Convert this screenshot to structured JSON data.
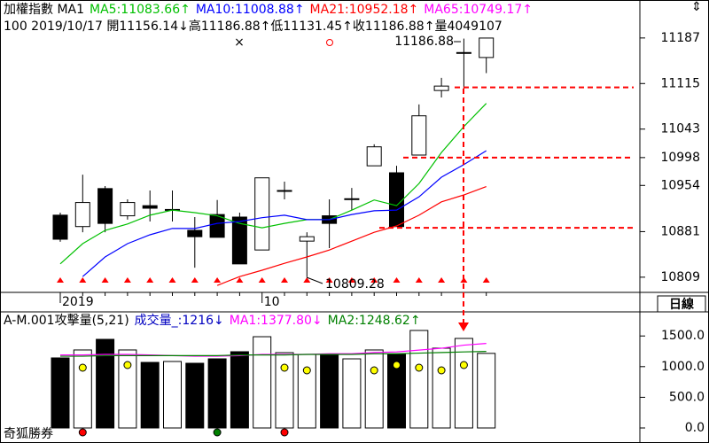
{
  "chart_data": [
    {
      "type": "candlestick",
      "title": "加權指數 MA1",
      "info": "100 2019/10/17 開11156.14↓高11186.88↑低11131.45↑收11186.88↑量4049107",
      "extra_legend": [
        {
          "text": "MA65:10749.17↑",
          "color": "#ff00ff"
        }
      ],
      "categories": [
        "2019",
        null,
        null,
        null,
        null,
        null,
        null,
        null,
        null,
        "10",
        null,
        null,
        null,
        null,
        null,
        null,
        null,
        null,
        null,
        null
      ],
      "open": [
        10907,
        10889,
        10949,
        10906,
        10922,
        10915,
        10883,
        10908,
        10904,
        10852,
        10945,
        10866,
        10906,
        10932,
        10985,
        10974,
        11002,
        11104,
        11163,
        11156.14
      ],
      "high": [
        10911,
        10971,
        10953,
        10932,
        10946,
        10946,
        10904,
        10931,
        10911,
        10966,
        10960,
        10880,
        10932,
        10950,
        11019,
        10985,
        11082,
        11124,
        11186,
        11186.88
      ],
      "low": [
        10865,
        10880,
        10880,
        10900,
        10897,
        10897,
        10824,
        10872,
        10830,
        10852,
        10932,
        10809.28,
        10855,
        10915,
        10985,
        10889,
        11002,
        11093,
        11107,
        11131.45
      ],
      "close": [
        10869,
        10927,
        10894,
        10927,
        10918,
        10916,
        10873,
        10872,
        10830,
        10966,
        10946,
        10873,
        10894,
        10933,
        11015,
        10889,
        11064,
        11111,
        11164,
        11186.88
      ],
      "series": [
        {
          "name": "MA5:11083.66↑",
          "color": "#00c000",
          "values": [
            10830,
            10862,
            10883,
            10893,
            10907,
            10915,
            10911,
            10906,
            10894,
            10887,
            10894,
            10900,
            10900,
            10915,
            10931,
            10922,
            10957,
            11006,
            11047,
            11083.66
          ]
        },
        {
          "name": "MA10:11008.88↑",
          "color": "#0000ff",
          "values": [
            null,
            10810,
            10841,
            10862,
            10876,
            10886,
            10886,
            10894,
            10897,
            10903,
            10907,
            10900,
            10900,
            10908,
            10914,
            10915,
            10936,
            10967,
            10987,
            11008.88
          ]
        },
        {
          "name": "MA21:10952.18↑",
          "color": "#ff0000",
          "values": [
            null,
            null,
            null,
            null,
            null,
            null,
            null,
            10796,
            10810,
            10820,
            10831,
            10841,
            10852,
            10866,
            10880,
            10890,
            10907,
            10928,
            10939,
            10952.18
          ]
        }
      ],
      "levels": [
        11109,
        10998,
        10887
      ],
      "annotations": [
        {
          "text": "11186.88"
        },
        {
          "text": "10809.28"
        }
      ],
      "ylim": [
        10785,
        11247
      ],
      "yticks": [
        11187,
        11115,
        11043,
        10998,
        10954,
        10881,
        10809
      ],
      "period_label": "日線"
    },
    {
      "type": "bar",
      "title": "A-M.001攻擊量(5,21)",
      "series": [
        {
          "name": "成交量_:1216↓",
          "color": "#0000c0",
          "values": [
            1142,
            1272,
            1445,
            1272,
            1069,
            1084,
            1055,
            1127,
            1243,
            1488,
            1228,
            1199,
            1199,
            1127,
            1272,
            1199,
            1590,
            1301,
            1460,
            1216
          ]
        },
        {
          "name": "MA1:1377.80↓",
          "color": "#ff00ff",
          "type": "line",
          "values": [
            1190,
            1190,
            1200,
            1200,
            1190,
            1180,
            1170,
            1170,
            1180,
            1200,
            1200,
            1200,
            1210,
            1210,
            1230,
            1240,
            1270,
            1300,
            1350,
            1377.8
          ]
        },
        {
          "name": "MA2:1248.62↑",
          "color": "#008000",
          "type": "line",
          "values": [
            1170,
            1170,
            1180,
            1180,
            1180,
            1180,
            1180,
            1180,
            1190,
            1190,
            1190,
            1200,
            1200,
            1200,
            1210,
            1210,
            1220,
            1230,
            1240,
            1248.62
          ]
        }
      ],
      "ylim": [
        -202,
        1893
      ],
      "yticks": [
        {
          "value": 1500,
          "label": "1500.0"
        },
        {
          "value": 1000,
          "label": "1000.0"
        },
        {
          "value": 500,
          "label": "500.0"
        },
        {
          "value": 0,
          "label": "0.0"
        }
      ],
      "footer": "奇狐勝券"
    }
  ]
}
